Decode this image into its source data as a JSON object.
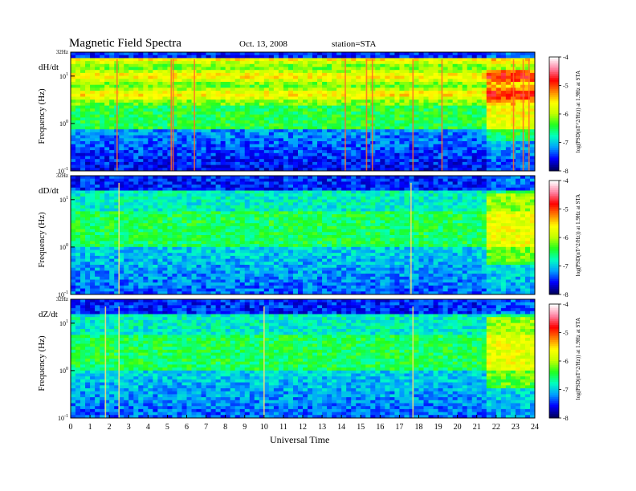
{
  "header": {
    "title": "Magnetic  Field  Spectra",
    "date": "Oct. 13, 2008",
    "station": "station=STA"
  },
  "chart_data": {
    "type": "heatmap",
    "xlabel": "Universal Time",
    "xlim": [
      0,
      24
    ],
    "x_ticks": [
      "0",
      "1",
      "2",
      "3",
      "4",
      "5",
      "6",
      "7",
      "8",
      "9",
      "10",
      "11",
      "12",
      "13",
      "14",
      "15",
      "16",
      "17",
      "18",
      "19",
      "20",
      "21",
      "22",
      "23",
      "24"
    ],
    "ylabel": "Frequency  (Hz)",
    "ylim": [
      0.1,
      32
    ],
    "y_scale": "log",
    "y_ticks": [
      {
        "value": 32,
        "label": "32Hz"
      },
      {
        "value": 10,
        "label_base": "10",
        "label_exp": "1"
      },
      {
        "value": 1,
        "label_base": "10",
        "label_exp": "0"
      },
      {
        "value": 0.1,
        "label_base": "10",
        "label_exp": "-1"
      }
    ],
    "colorbar": {
      "label": "log(PSD(nT^2/Hz)) at 1.9Hz at STA",
      "ticks": [
        "-4",
        "-5",
        "-6",
        "-7",
        "-8"
      ],
      "range": [
        -8,
        -4
      ],
      "colors": [
        "#000060",
        "#0000ff",
        "#00a0ff",
        "#00ffc0",
        "#20ff20",
        "#c0ff00",
        "#ffff00",
        "#ff8000",
        "#ff0000",
        "#ff80a0",
        "#ffffff"
      ]
    },
    "panels": [
      {
        "name": "dH/dt"
      },
      {
        "name": "dD/dt"
      },
      {
        "name": "dZ/dt"
      }
    ]
  }
}
